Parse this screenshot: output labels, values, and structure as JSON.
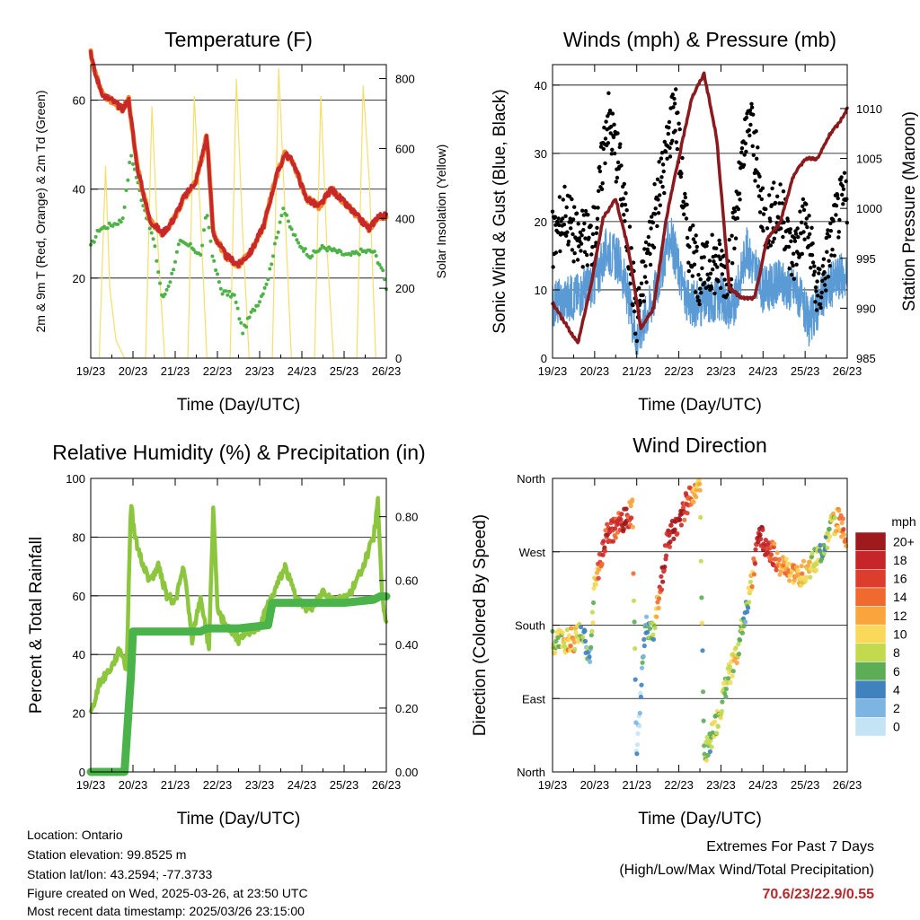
{
  "panels": {
    "temperature": {
      "title": "Temperature (F)",
      "ylabel_left": "2m & 9m T (Red, Orange) & 2m Td (Green)",
      "ylabel_right": "Solar Insolation (Yellow)",
      "xlabel": "Time (Day/UTC)"
    },
    "winds": {
      "title": "Winds (mph) & Pressure (mb)",
      "ylabel_left": "Sonic Wind & Gust (Blue, Black)",
      "ylabel_right": "Station Pressure (Maroon)",
      "xlabel": "Time (Day/UTC)"
    },
    "humidity": {
      "title": "Relative Humidity (%) & Precipitation (in)",
      "ylabel_left": "Percent & Total Rainfall",
      "xlabel": "Time (Day/UTC)"
    },
    "direction": {
      "title": "Wind Direction",
      "ylabel_left": "Direction (Colored By Speed)",
      "xlabel": "Time (Day/UTC)",
      "colorbar_title": "mph",
      "colorbar_labels": [
        "20+",
        "18",
        "16",
        "14",
        "12",
        "10",
        "8",
        "6",
        "4",
        "2",
        "0"
      ],
      "colorbar_colors": [
        "#9e1a1d",
        "#c6262a",
        "#dd3d2d",
        "#f06a2f",
        "#f9a43d",
        "#fad85a",
        "#c3da4f",
        "#5cad55",
        "#3f82bd",
        "#7cb5e2",
        "#c4e4f5"
      ]
    }
  },
  "footer": {
    "location": "Location: Ontario",
    "elevation": "Station elevation: 99.8525 m",
    "latlon": "Station lat/lon: 43.2594; -77.3733",
    "created": "Figure created on Wed, 2025-03-26, at 23:50 UTC",
    "recent": "Most recent data timestamp: 2025/03/26 23:15:00"
  },
  "extremes": {
    "title": "Extremes For Past 7 Days",
    "subtitle": "(High/Low/Max Wind/Total Precipitation)",
    "values": "70.6/23/22.9/0.55"
  },
  "chart_data": [
    {
      "type": "line",
      "title": "Temperature (F)",
      "xlabel": "Time (Day/UTC)",
      "ylabel": "2m & 9m T (Red, Orange) & 2m Td (Green)",
      "y2label": "Solar Insolation (Yellow)",
      "x_ticks": [
        "19/23",
        "20/23",
        "21/23",
        "22/23",
        "23/23",
        "24/23",
        "25/23",
        "26/23"
      ],
      "ylim": [
        2,
        68
      ],
      "y_ticks": [
        20,
        40,
        60
      ],
      "y2lim": [
        0,
        840
      ],
      "y2_ticks": [
        0,
        200,
        400,
        600,
        800
      ],
      "series": [
        {
          "name": "2m & 9m T (Red, Orange)",
          "color": "#c8282a",
          "x": [
            0,
            0.1,
            0.3,
            0.5,
            0.75,
            0.9,
            1.1,
            1.4,
            1.7,
            1.95,
            2.2,
            2.5,
            2.75,
            2.9,
            3.2,
            3.5,
            3.8,
            4.1,
            4.4,
            4.6,
            4.8,
            5.1,
            5.4,
            5.7,
            6.0,
            6.3,
            6.6,
            6.8,
            7.0
          ],
          "y": [
            71,
            66,
            61,
            60,
            58,
            60,
            45,
            33,
            30,
            33,
            38,
            42,
            52,
            30,
            25,
            23,
            26,
            32,
            43,
            48,
            46,
            38,
            36,
            40,
            37,
            34,
            31,
            34,
            34
          ]
        },
        {
          "name": "2m Td (Green)",
          "color": "#4db348",
          "x": [
            0,
            0.2,
            0.5,
            0.75,
            0.85,
            0.95,
            1.2,
            1.5,
            1.7,
            1.9,
            2.1,
            2.4,
            2.6,
            2.75,
            2.9,
            3.1,
            3.4,
            3.6,
            3.8,
            4.0,
            4.2,
            4.4,
            4.55,
            4.7,
            4.9,
            5.2,
            5.5,
            5.8,
            6.1,
            6.4,
            6.7,
            6.9,
            7.0
          ],
          "y": [
            27,
            31,
            32,
            33,
            40,
            48,
            38,
            28,
            15,
            20,
            28,
            27,
            25,
            35,
            24,
            17,
            16,
            8,
            12,
            15,
            20,
            29,
            36,
            32,
            28,
            25,
            27,
            26,
            25,
            26,
            26,
            22,
            18
          ]
        },
        {
          "name": "Solar Insolation (Yellow)",
          "color": "#f6de6a",
          "axis": "right",
          "x": [
            0.2,
            0.35,
            0.45,
            0.6,
            0.8,
            1.3,
            1.45,
            1.6,
            1.75,
            2.3,
            2.45,
            2.6,
            2.75,
            3.3,
            3.45,
            3.6,
            3.75,
            4.3,
            4.45,
            4.6,
            4.75,
            5.3,
            5.45,
            5.6,
            5.75,
            6.3,
            6.45,
            6.6,
            6.75
          ],
          "y": [
            0,
            550,
            200,
            50,
            0,
            0,
            720,
            300,
            0,
            0,
            750,
            400,
            0,
            0,
            800,
            350,
            0,
            0,
            830,
            420,
            0,
            0,
            750,
            300,
            0,
            0,
            780,
            500,
            0
          ]
        }
      ]
    },
    {
      "type": "scatter",
      "title": "Winds (mph) & Pressure (mb)",
      "xlabel": "Time (Day/UTC)",
      "ylabel": "Sonic Wind & Gust (Blue, Black)",
      "y2label": "Station Pressure (Maroon)",
      "x_ticks": [
        "19/23",
        "20/23",
        "21/23",
        "22/23",
        "23/23",
        "24/23",
        "25/23",
        "26/23"
      ],
      "ylim": [
        0,
        43
      ],
      "y_ticks": [
        0,
        10,
        20,
        30,
        40
      ],
      "y2lim": [
        985,
        1014.4
      ],
      "y2_ticks": [
        985,
        990,
        995,
        1000,
        1005,
        1010
      ],
      "series": [
        {
          "name": "Sonic Wind (Blue)",
          "color": "#5b9bd5",
          "x": [
            0,
            0.5,
            1.0,
            1.3,
            1.6,
            2.0,
            2.4,
            2.8,
            3.2,
            3.6,
            4.0,
            4.3,
            4.6,
            5.0,
            5.4,
            5.8,
            6.1,
            6.5,
            6.8,
            7.0
          ],
          "y": [
            8,
            9,
            11,
            16,
            14,
            3,
            9,
            18,
            8,
            8,
            9,
            7,
            16,
            10,
            11,
            10,
            5,
            10,
            12,
            12
          ]
        },
        {
          "name": "Gust (Black)",
          "color": "#000000",
          "x": [
            0,
            0.3,
            0.6,
            1.0,
            1.3,
            1.6,
            2.0,
            2.3,
            2.7,
            2.9,
            3.2,
            3.5,
            3.8,
            4.2,
            4.5,
            4.7,
            5.0,
            5.4,
            5.7,
            6.0,
            6.3,
            6.6,
            6.8,
            7.0
          ],
          "y": [
            17,
            22,
            17,
            18,
            36,
            28,
            6,
            17,
            30,
            38,
            18,
            12,
            14,
            13,
            28,
            36,
            20,
            22,
            15,
            21,
            9,
            17,
            22,
            24
          ]
        },
        {
          "name": "Station Pressure (Maroon)",
          "color": "#8b1a1e",
          "axis": "right",
          "x": [
            0,
            0.3,
            0.6,
            0.9,
            1.2,
            1.5,
            1.8,
            2.1,
            2.4,
            2.7,
            3.0,
            3.3,
            3.6,
            3.9,
            4.2,
            4.5,
            4.8,
            5.1,
            5.4,
            5.7,
            6.0,
            6.3,
            6.6,
            6.8,
            7.0
          ],
          "y": [
            990.5,
            988.5,
            986.5,
            992,
            999,
            1001,
            996,
            988,
            990,
            999,
            1005,
            1011,
            1013.5,
            1007,
            992,
            991,
            991,
            997,
            998.5,
            1003,
            1005,
            1005,
            1007.5,
            1008.5,
            1010
          ]
        }
      ]
    },
    {
      "type": "line",
      "title": "Relative Humidity (%) & Precipitation (in)",
      "xlabel": "Time (Day/UTC)",
      "ylabel": "Percent & Total Rainfall",
      "x_ticks": [
        "19/23",
        "20/23",
        "21/23",
        "22/23",
        "23/23",
        "24/23",
        "25/23",
        "26/23"
      ],
      "ylim": [
        0,
        100
      ],
      "y_ticks": [
        0,
        20,
        40,
        60,
        80,
        100
      ],
      "y2lim": [
        0,
        0.92
      ],
      "y2_ticks": [
        "0.00",
        "0.20",
        "0.40",
        "0.60",
        "0.80"
      ],
      "series": [
        {
          "name": "Relative Humidity",
          "color": "#8cc63f",
          "x": [
            0,
            0.2,
            0.5,
            0.7,
            0.85,
            0.95,
            1.05,
            1.2,
            1.4,
            1.6,
            1.8,
            2.0,
            2.2,
            2.4,
            2.6,
            2.8,
            2.9,
            3.0,
            3.2,
            3.5,
            3.8,
            4.0,
            4.3,
            4.6,
            4.9,
            5.2,
            5.5,
            5.8,
            6.1,
            6.3,
            6.5,
            6.7,
            6.8,
            6.9,
            7.0
          ],
          "y": [
            20,
            30,
            36,
            42,
            35,
            92,
            80,
            72,
            65,
            70,
            60,
            58,
            70,
            45,
            60,
            42,
            90,
            55,
            50,
            45,
            48,
            50,
            60,
            70,
            58,
            55,
            62,
            58,
            60,
            65,
            72,
            80,
            92,
            60,
            50
          ]
        },
        {
          "name": "Total Rainfall",
          "color": "#4ab44a",
          "axis": "right",
          "x": [
            0,
            0.8,
            0.85,
            0.95,
            1.0,
            1.5,
            2.0,
            2.6,
            2.75,
            3.5,
            4.2,
            4.3,
            5.0,
            6.0,
            6.7,
            6.85,
            7.0
          ],
          "y": [
            0.0,
            0.0,
            0.1,
            0.3,
            0.44,
            0.44,
            0.44,
            0.44,
            0.45,
            0.45,
            0.46,
            0.53,
            0.53,
            0.53,
            0.54,
            0.55,
            0.55
          ]
        }
      ]
    },
    {
      "type": "scatter",
      "title": "Wind Direction",
      "xlabel": "Time (Day/UTC)",
      "ylabel": "Direction (Colored By Speed)",
      "x_ticks": [
        "19/23",
        "20/23",
        "21/23",
        "22/23",
        "23/23",
        "24/23",
        "25/23",
        "26/23"
      ],
      "y_ticks": [
        "North",
        "East",
        "South",
        "West",
        "North"
      ],
      "y_values": [
        0,
        90,
        180,
        270,
        360
      ],
      "ylim": [
        0,
        360
      ],
      "colorbar": {
        "title": "mph",
        "labels": [
          "20+",
          "18",
          "16",
          "14",
          "12",
          "10",
          "8",
          "6",
          "4",
          "2",
          "0"
        ]
      },
      "series": [
        {
          "name": "Direction",
          "x": [
            0.1,
            0.3,
            0.5,
            0.7,
            0.9,
            1.0,
            1.1,
            1.3,
            1.5,
            1.7,
            1.9,
            2.0,
            2.2,
            2.4,
            2.6,
            2.7,
            2.9,
            3.1,
            3.3,
            3.5,
            3.6,
            3.9,
            4.2,
            4.4,
            4.6,
            4.9,
            5.2,
            5.5,
            5.8,
            6.1,
            6.4,
            6.6,
            6.8,
            6.95
          ],
          "y": [
            160,
            160,
            162,
            170,
            140,
            230,
            250,
            290,
            300,
            310,
            320,
            10,
            180,
            170,
            240,
            280,
            300,
            320,
            340,
            360,
            20,
            60,
            120,
            150,
            200,
            290,
            270,
            250,
            240,
            250,
            270,
            300,
            310,
            290
          ],
          "speed": [
            8,
            10,
            12,
            6,
            4,
            10,
            14,
            18,
            16,
            20,
            14,
            2,
            4,
            6,
            18,
            16,
            20,
            18,
            14,
            10,
            6,
            8,
            8,
            10,
            4,
            20,
            16,
            12,
            12,
            10,
            6,
            8,
            12,
            14
          ]
        }
      ]
    }
  ]
}
